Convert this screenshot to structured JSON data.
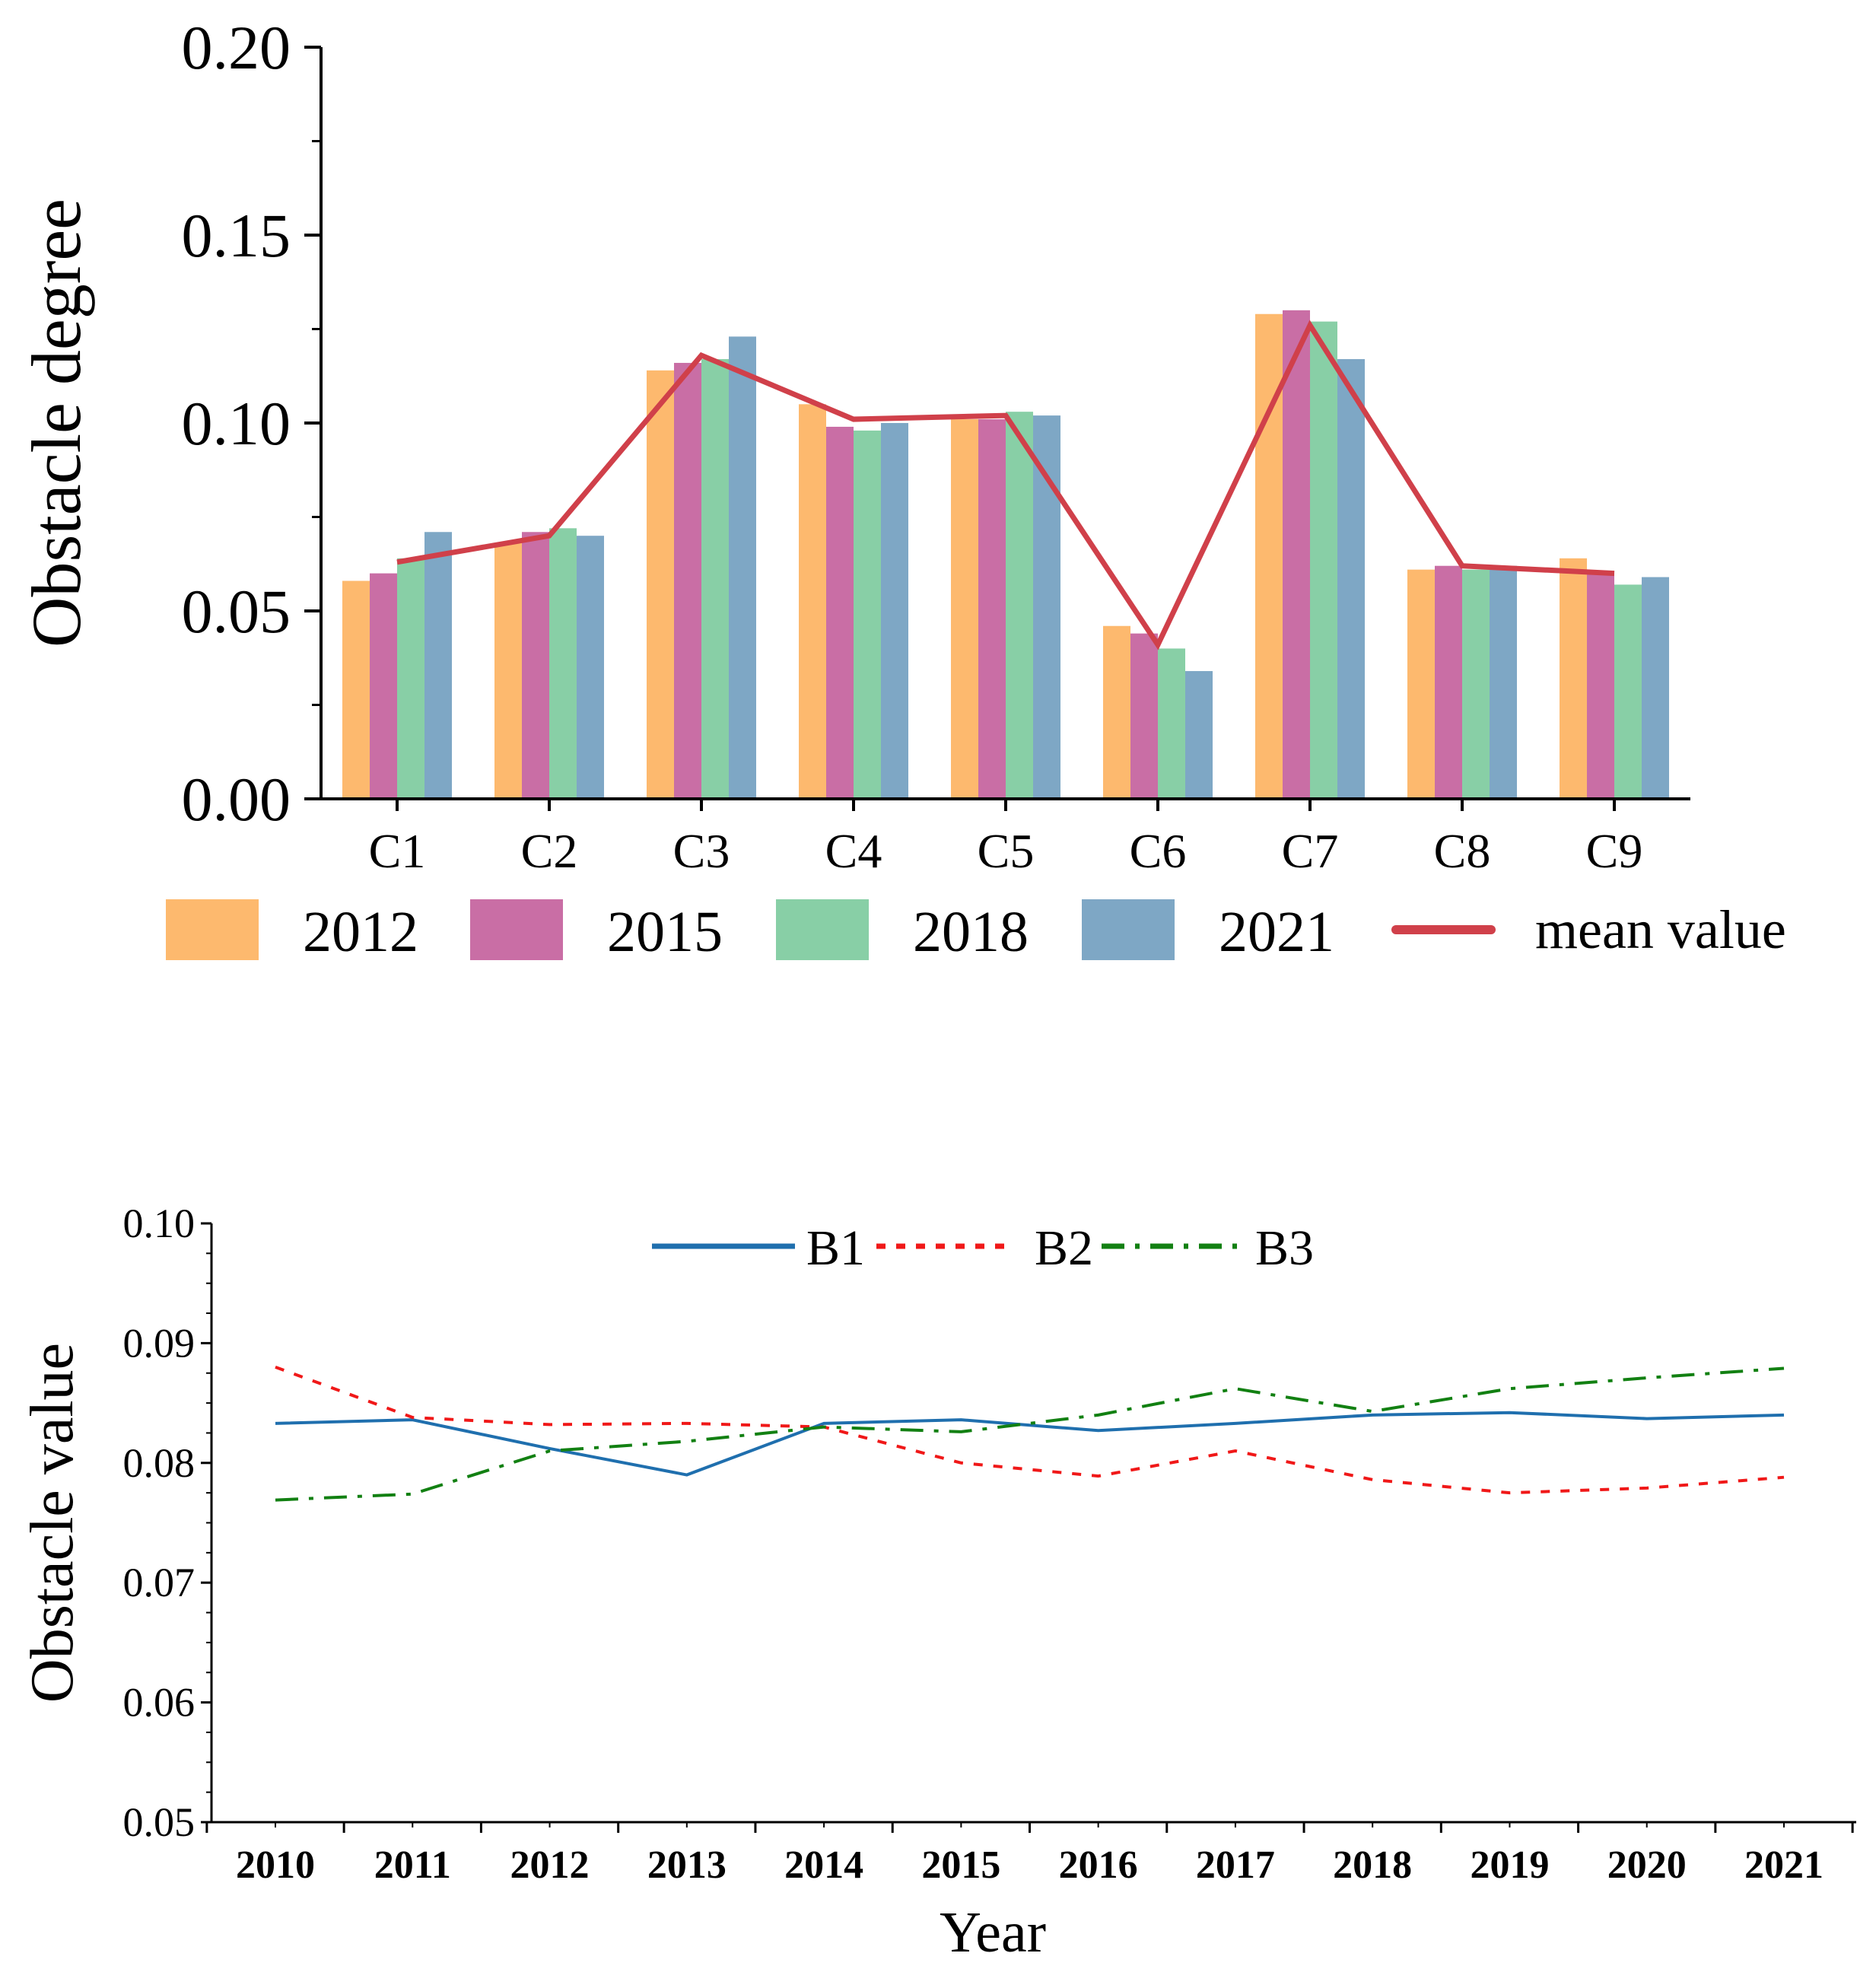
{
  "chart_data": [
    {
      "type": "bar",
      "title": "",
      "xlabel": "",
      "ylabel": "Obstacle degree",
      "ylim": [
        0,
        0.2
      ],
      "yticks": [
        "0.00",
        "0.05",
        "0.10",
        "0.15",
        "0.20"
      ],
      "categories": [
        "C1",
        "C2",
        "C3",
        "C4",
        "C5",
        "C6",
        "C7",
        "C8",
        "C9"
      ],
      "series": [
        {
          "name": "2012",
          "color": "#FDB96E",
          "values": [
            0.058,
            0.068,
            0.114,
            0.105,
            0.101,
            0.046,
            0.129,
            0.061,
            0.064
          ]
        },
        {
          "name": "2015",
          "color": "#C96EA5",
          "values": [
            0.06,
            0.071,
            0.116,
            0.099,
            0.101,
            0.044,
            0.13,
            0.062,
            0.06
          ]
        },
        {
          "name": "2018",
          "color": "#88CFA6",
          "values": [
            0.064,
            0.072,
            0.117,
            0.098,
            0.103,
            0.04,
            0.127,
            0.061,
            0.057
          ]
        },
        {
          "name": "2021",
          "color": "#7EA7C5",
          "values": [
            0.071,
            0.07,
            0.123,
            0.1,
            0.102,
            0.034,
            0.117,
            0.062,
            0.059
          ]
        }
      ],
      "line_series": {
        "name": "mean value",
        "color": "#D0404A",
        "values": [
          0.063,
          0.07,
          0.118,
          0.101,
          0.102,
          0.041,
          0.126,
          0.062,
          0.06
        ]
      },
      "legend": "bottom"
    },
    {
      "type": "line",
      "title": "",
      "xlabel": "Year",
      "ylabel": "Obstacle value",
      "x": [
        "2010",
        "2011",
        "2012",
        "2013",
        "2014",
        "2015",
        "2016",
        "2017",
        "2018",
        "2019",
        "2020",
        "2021"
      ],
      "ylim": [
        0.05,
        0.1
      ],
      "yticks": [
        "0.05",
        "0.06",
        "0.07",
        "0.08",
        "0.09",
        "0.10"
      ],
      "series": [
        {
          "name": "B1",
          "color": "#1F6FAE",
          "dash": "solid",
          "values": [
            0.0833,
            0.0836,
            0.0812,
            0.079,
            0.0833,
            0.0836,
            0.0827,
            0.0833,
            0.084,
            0.0842,
            0.0837,
            0.084
          ]
        },
        {
          "name": "B2",
          "color": "#F01818",
          "dash": "dashed",
          "values": [
            0.088,
            0.0838,
            0.0832,
            0.0833,
            0.083,
            0.08,
            0.0789,
            0.081,
            0.0786,
            0.0775,
            0.0779,
            0.0788
          ]
        },
        {
          "name": "B3",
          "color": "#128012",
          "dash": "dashdot",
          "values": [
            0.0769,
            0.0774,
            0.081,
            0.0818,
            0.083,
            0.0826,
            0.084,
            0.0862,
            0.0843,
            0.0862,
            0.0871,
            0.0879
          ]
        }
      ],
      "legend": "top-center"
    }
  ]
}
